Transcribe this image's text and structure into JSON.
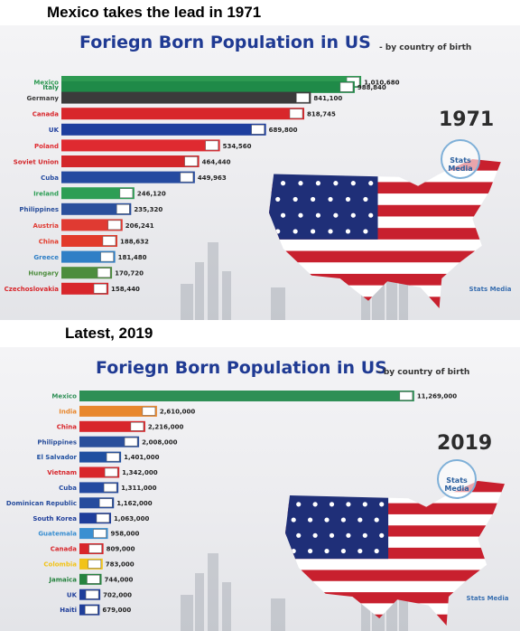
{
  "captions": {
    "top": "Mexico takes the lead in 1971",
    "bottom": "Latest, 2019"
  },
  "chart_data": [
    {
      "type": "bar",
      "title": "Foriegn Born Population in US",
      "subtitle": "- by country of birth",
      "year": "1971",
      "badge": "Stats Media",
      "watermark": "Stats Media",
      "categories": [
        "Mexico",
        "Italy",
        "Germany",
        "Canada",
        "UK",
        "Poland",
        "Soviet Union",
        "Cuba",
        "Ireland",
        "Philippines",
        "Austria",
        "China",
        "Greece",
        "Hungary",
        "Czechoslovakia"
      ],
      "values": [
        1010680,
        988840,
        841100,
        818745,
        689800,
        534560,
        464440,
        449963,
        246120,
        235320,
        206241,
        188632,
        181480,
        170720,
        158440
      ],
      "value_labels": [
        "1,010,680",
        "988,840",
        "841,100",
        "818,745",
        "689,800",
        "534,560",
        "464,440",
        "449,963",
        "246,120",
        "235,320",
        "206,241",
        "188,632",
        "181,480",
        "170,720",
        "158,440"
      ],
      "colors": [
        "#2e9a52",
        "#1f8a48",
        "#3b3b3b",
        "#d8262b",
        "#1d3e9e",
        "#df2a30",
        "#d3262a",
        "#244aa0",
        "#2d9e55",
        "#2a4f9c",
        "#e03a32",
        "#e23a2a",
        "#2f7fc6",
        "#4d8d3d",
        "#d8262b"
      ],
      "overlapping_pairs": [
        [
          0,
          1
        ]
      ],
      "xlim": [
        0,
        1050000
      ]
    },
    {
      "type": "bar",
      "title": "Foriegn Born Population in US",
      "subtitle": "- by country of birth",
      "year": "2019",
      "badge": "Stats Media",
      "watermark": "Stats Media",
      "categories": [
        "Mexico",
        "India",
        "China",
        "Philippines",
        "El Salvador",
        "Vietnam",
        "Cuba",
        "Dominican Republic",
        "South Korea",
        "Guatemala",
        "Canada",
        "Colombia",
        "Jamaica",
        "UK",
        "Haiti"
      ],
      "values": [
        11269000,
        2610000,
        2216000,
        2008000,
        1401000,
        1342000,
        1311000,
        1162000,
        1063000,
        958000,
        809000,
        783000,
        744000,
        702000,
        679000
      ],
      "value_labels": [
        "11,269,000",
        "2,610,000",
        "2,216,000",
        "2,008,000",
        "1,401,000",
        "1,342,000",
        "1,311,000",
        "1,162,000",
        "1,063,000",
        "958,000",
        "809,000",
        "783,000",
        "744,000",
        "702,000",
        "679,000"
      ],
      "colors": [
        "#2e8f55",
        "#e8872d",
        "#d8262b",
        "#2a4f9c",
        "#1f4fa0",
        "#d8262b",
        "#244aa0",
        "#264c9d",
        "#1f3e9a",
        "#3a8fd1",
        "#d8262b",
        "#f2c318",
        "#26833f",
        "#1f3e9a",
        "#1f3e9a"
      ],
      "xlim": [
        0,
        11700000
      ]
    }
  ]
}
